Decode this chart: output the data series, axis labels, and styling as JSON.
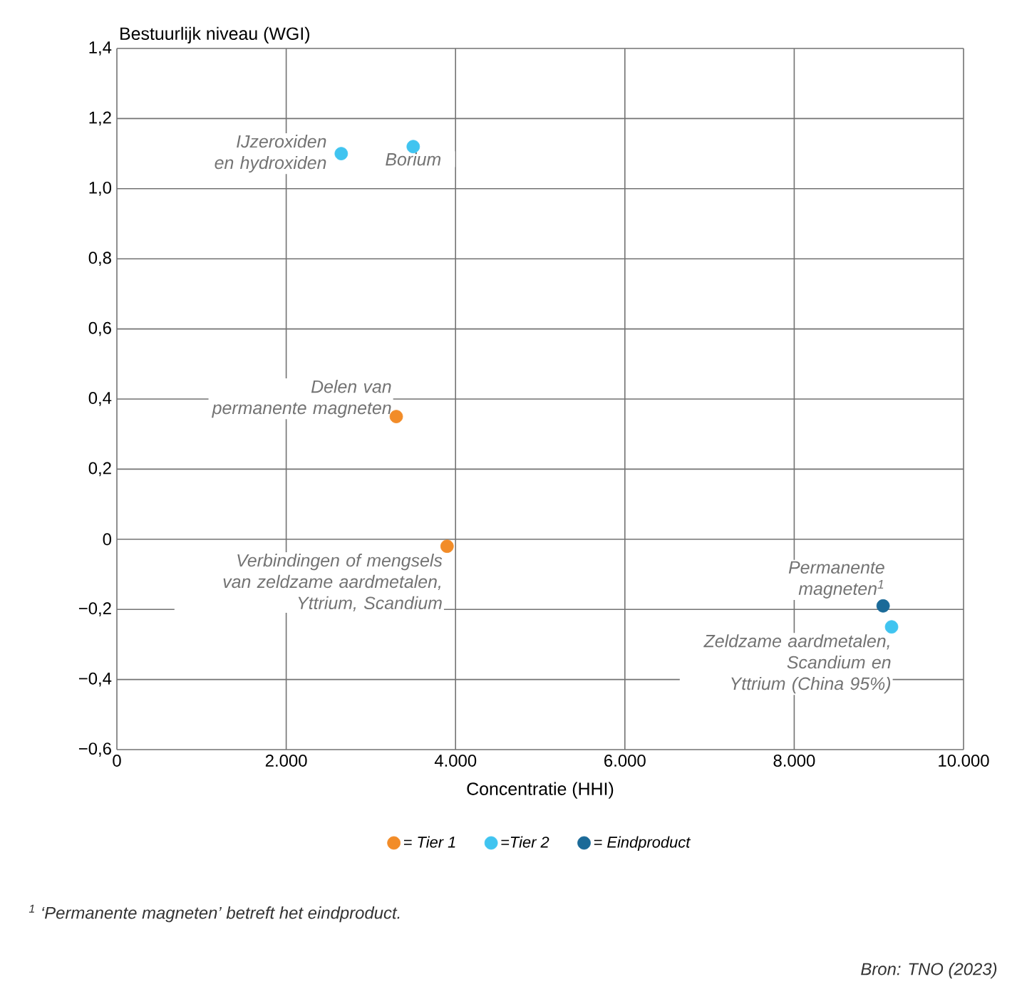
{
  "chart_data": {
    "type": "scatter",
    "xlabel": "Concentratie (HHI)",
    "ylabel": "Bestuurlijk niveau (WGI)",
    "xlim": [
      0,
      10000
    ],
    "ylim": [
      -0.6,
      1.4
    ],
    "xticks": [
      0,
      {
        "value": 2000,
        "label": "2.000"
      },
      {
        "value": 4000,
        "label": "4.000"
      },
      {
        "value": 6000,
        "label": "6.000"
      },
      {
        "value": 8000,
        "label": "8.000"
      },
      {
        "value": 10000,
        "label": "10.000"
      }
    ],
    "yticks": [
      {
        "value": -0.6,
        "label": "−0,6"
      },
      {
        "value": -0.4,
        "label": "−0,4"
      },
      {
        "value": -0.2,
        "label": "−0,2"
      },
      0,
      {
        "value": 0.2,
        "label": "0,2"
      },
      {
        "value": 0.4,
        "label": "0,4"
      },
      {
        "value": 0.6,
        "label": "0,6"
      },
      {
        "value": 0.8,
        "label": "0,8"
      },
      {
        "value": 1.0,
        "label": "1,0"
      },
      {
        "value": 1.2,
        "label": "1,2"
      },
      {
        "value": 1.4,
        "label": "1,4"
      }
    ],
    "grid": true,
    "legend": "bottom",
    "marker": "circle",
    "series": [
      {
        "name": "= Tier 1",
        "color": "#f28c28",
        "x": [
          3300,
          3900
        ],
        "values": [
          0.35,
          -0.02
        ]
      },
      {
        "name": "=Tier 2",
        "color": "#40c4f0",
        "x": [
          2650,
          3500,
          9150
        ],
        "values": [
          1.1,
          1.12,
          -0.25
        ]
      },
      {
        "name": "= Eindproduct",
        "color": "#1b6a98",
        "x": [
          9050
        ],
        "values": [
          -0.19
        ]
      }
    ],
    "annotations": [
      {
        "text": "IJzeroxiden en hydroxiden",
        "x": 2650,
        "y": 1.1
      },
      {
        "text": "Borium",
        "x": 3500,
        "y": 1.12
      },
      {
        "text": "Delen van permanente magneten",
        "x": 3300,
        "y": 0.35
      },
      {
        "text": "Verbindingen of mengsels van zeldzame aardmetalen, Yttrium, Scandium",
        "x": 3900,
        "y": -0.02
      },
      {
        "text": "Permanente magneten$^{1}$",
        "x": 9050,
        "y": -0.19
      },
      {
        "text": "Zeldzame aardmetalen, Scandium en Yttrium (China 95%)",
        "x": 9150,
        "y": -0.25
      },
      "$^{1}$ ‘Permanente magneten’ betreft het eindproduct.",
      "Bron: TNO (2023)"
    ]
  }
}
